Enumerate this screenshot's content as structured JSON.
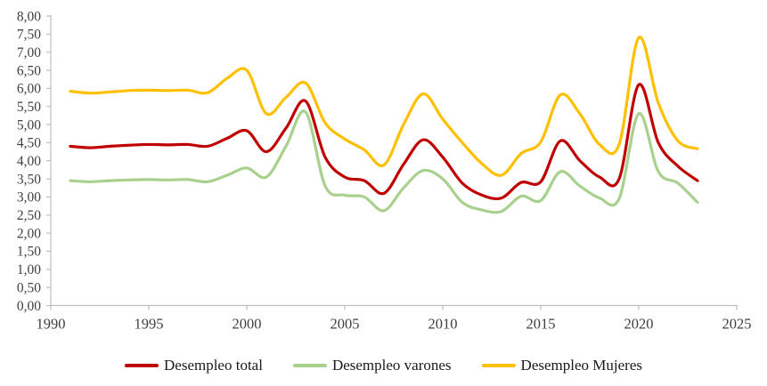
{
  "chart_data": {
    "type": "line",
    "smoothed": true,
    "title": "",
    "xlabel": "",
    "ylabel": "",
    "grid": false,
    "legend_position": "bottom",
    "x": [
      1991,
      1992,
      1993,
      1994,
      1995,
      1996,
      1997,
      1998,
      1999,
      2000,
      2001,
      2002,
      2003,
      2004,
      2005,
      2006,
      2007,
      2008,
      2009,
      2010,
      2011,
      2012,
      2013,
      2014,
      2015,
      2016,
      2017,
      2018,
      2019,
      2020,
      2021,
      2022,
      2023
    ],
    "series": [
      {
        "name": "Desempleo total",
        "color": "#C00000",
        "values": [
          4.4,
          4.36,
          4.4,
          4.43,
          4.45,
          4.44,
          4.45,
          4.4,
          4.62,
          4.83,
          4.25,
          4.9,
          5.65,
          4.1,
          3.55,
          3.45,
          3.1,
          3.9,
          4.58,
          4.1,
          3.38,
          3.05,
          2.97,
          3.4,
          3.42,
          4.55,
          4.0,
          3.55,
          3.5,
          6.1,
          4.5,
          3.85,
          3.45
        ]
      },
      {
        "name": "Desempleo varones",
        "color": "#A9D18E",
        "values": [
          3.45,
          3.42,
          3.45,
          3.47,
          3.48,
          3.47,
          3.48,
          3.42,
          3.6,
          3.8,
          3.55,
          4.4,
          5.35,
          3.3,
          3.05,
          3.0,
          2.62,
          3.25,
          3.73,
          3.5,
          2.85,
          2.64,
          2.6,
          3.02,
          2.9,
          3.7,
          3.3,
          2.97,
          2.95,
          5.3,
          3.7,
          3.38,
          2.85
        ]
      },
      {
        "name": "Desempleo Mujeres",
        "color": "#FFC000",
        "values": [
          5.92,
          5.87,
          5.9,
          5.94,
          5.95,
          5.94,
          5.95,
          5.88,
          6.28,
          6.5,
          5.3,
          5.75,
          6.15,
          5.05,
          4.6,
          4.3,
          3.88,
          5.0,
          5.85,
          5.15,
          4.5,
          3.92,
          3.6,
          4.2,
          4.52,
          5.82,
          5.3,
          4.45,
          4.45,
          7.4,
          5.6,
          4.55,
          4.33
        ]
      }
    ],
    "x_axis": {
      "min": 1990,
      "max": 2025,
      "tick_values": [
        1990,
        1995,
        2000,
        2005,
        2010,
        2015,
        2020,
        2025
      ],
      "tick_labels": [
        "1990",
        "1995",
        "2000",
        "2005",
        "2010",
        "2015",
        "2020",
        "2025"
      ]
    },
    "y_axis": {
      "min": 0,
      "max": 8,
      "tick_step": 0.5,
      "tick_labels": [
        "0,00",
        "0,50",
        "1,00",
        "1,50",
        "2,00",
        "2,50",
        "3,00",
        "3,50",
        "4,00",
        "4,50",
        "5,00",
        "5,50",
        "6,00",
        "6,50",
        "7,00",
        "7,50",
        "8,00"
      ]
    },
    "style": {
      "axis_color": "#BFBFBF",
      "tick_label_color": "#404040",
      "legend_text_color": "#1a1a1a",
      "line_width": 3.2
    }
  }
}
